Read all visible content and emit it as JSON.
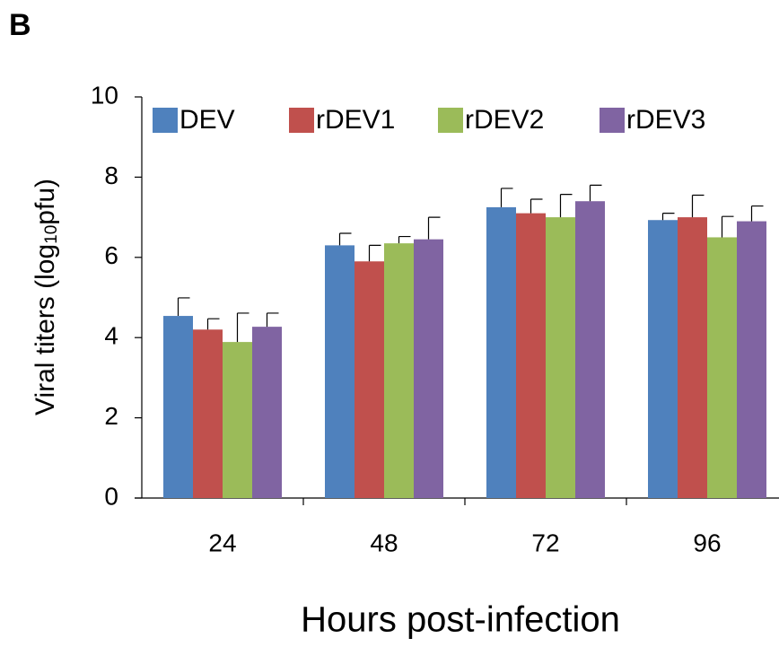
{
  "panel_label": "B",
  "chart_data": {
    "type": "bar",
    "x_label": "Hours post-infection",
    "y_label": [
      "Viral titers (log",
      "10",
      "pfu)"
    ],
    "categories": [
      "24",
      "48",
      "72",
      "96"
    ],
    "series": [
      {
        "name": "DEV",
        "color": "#4f81bd",
        "values": [
          4.54,
          6.3,
          7.25,
          6.93
        ],
        "errors": [
          0.45,
          0.3,
          0.47,
          0.17
        ]
      },
      {
        "name": "rDEV1",
        "color": "#c0504d",
        "values": [
          4.2,
          5.9,
          7.1,
          7.0
        ],
        "errors": [
          0.27,
          0.4,
          0.35,
          0.55
        ]
      },
      {
        "name": "rDEV2",
        "color": "#9bbb59",
        "values": [
          3.89,
          6.35,
          7.0,
          6.5
        ],
        "errors": [
          0.72,
          0.17,
          0.57,
          0.52
        ]
      },
      {
        "name": "rDEV3",
        "color": "#8064a2",
        "values": [
          4.27,
          6.45,
          7.4,
          6.9
        ],
        "errors": [
          0.34,
          0.55,
          0.4,
          0.38
        ]
      }
    ],
    "ylim": [
      0,
      10
    ],
    "yticks": [
      0,
      2,
      4,
      6,
      8,
      10
    ],
    "legend": "top"
  }
}
